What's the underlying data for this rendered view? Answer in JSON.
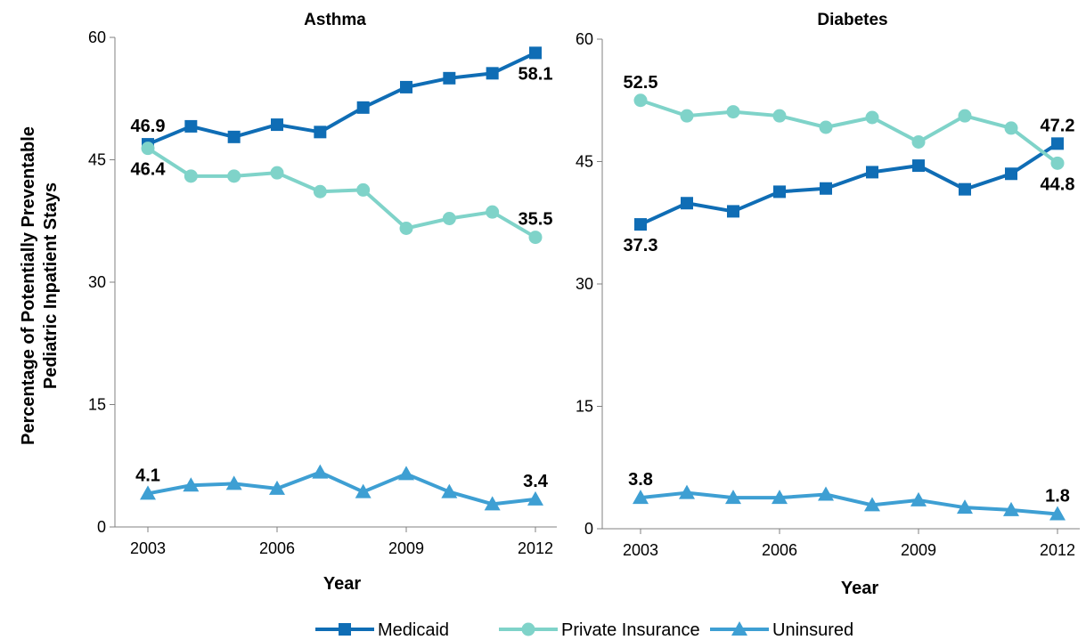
{
  "chart_data": [
    {
      "type": "line",
      "title": "Asthma",
      "xlabel": "Year",
      "ylabel": "Percentage of Potentially Preventable Pediatric Inpatient Stays",
      "x": [
        2003,
        2004,
        2005,
        2006,
        2007,
        2008,
        2009,
        2010,
        2011,
        2012
      ],
      "xticks": [
        "2003",
        "2006",
        "2009",
        "2012"
      ],
      "yticks": [
        "0",
        "15",
        "30",
        "45",
        "60"
      ],
      "ylim": [
        0,
        60
      ],
      "series": [
        {
          "name": "Medicaid",
          "color": "#0f6db5",
          "marker": "square",
          "values": [
            46.9,
            49.1,
            47.8,
            49.3,
            48.4,
            51.4,
            53.9,
            55.0,
            55.6,
            58.1
          ]
        },
        {
          "name": "Private Insurance",
          "color": "#7fd3c9",
          "marker": "circle",
          "values": [
            46.4,
            43.0,
            43.0,
            43.4,
            41.1,
            41.3,
            36.6,
            37.8,
            38.6,
            35.5
          ]
        },
        {
          "name": "Uninsured",
          "color": "#3e9fd3",
          "marker": "triangle",
          "values": [
            4.1,
            5.1,
            5.3,
            4.7,
            6.7,
            4.3,
            6.5,
            4.3,
            2.8,
            3.4
          ]
        }
      ],
      "data_labels": [
        {
          "series": "Medicaid",
          "index": 0,
          "text": "46.9",
          "position": "above"
        },
        {
          "series": "Private Insurance",
          "index": 0,
          "text": "46.4",
          "position": "below"
        },
        {
          "series": "Medicaid",
          "index": 9,
          "text": "58.1",
          "position": "below"
        },
        {
          "series": "Private Insurance",
          "index": 9,
          "text": "35.5",
          "position": "above"
        },
        {
          "series": "Uninsured",
          "index": 0,
          "text": "4.1",
          "position": "above"
        },
        {
          "series": "Uninsured",
          "index": 9,
          "text": "3.4",
          "position": "above"
        }
      ]
    },
    {
      "type": "line",
      "title": "Diabetes",
      "xlabel": "Year",
      "x": [
        2003,
        2004,
        2005,
        2006,
        2007,
        2008,
        2009,
        2010,
        2011,
        2012
      ],
      "xticks": [
        "2003",
        "2006",
        "2009",
        "2012"
      ],
      "yticks": [
        "0",
        "15",
        "30",
        "45",
        "60"
      ],
      "ylim": [
        0,
        60
      ],
      "series": [
        {
          "name": "Medicaid",
          "color": "#0f6db5",
          "marker": "square",
          "values": [
            37.3,
            39.9,
            38.9,
            41.3,
            41.7,
            43.7,
            44.5,
            41.6,
            43.5,
            47.2
          ]
        },
        {
          "name": "Private Insurance",
          "color": "#7fd3c9",
          "marker": "circle",
          "values": [
            52.5,
            50.6,
            51.1,
            50.6,
            49.2,
            50.4,
            47.4,
            50.6,
            49.1,
            44.8
          ]
        },
        {
          "name": "Uninsured",
          "color": "#3e9fd3",
          "marker": "triangle",
          "values": [
            3.8,
            4.4,
            3.8,
            3.8,
            4.2,
            2.9,
            3.5,
            2.6,
            2.3,
            1.8
          ]
        }
      ],
      "data_labels": [
        {
          "series": "Private Insurance",
          "index": 0,
          "text": "52.5",
          "position": "above"
        },
        {
          "series": "Medicaid",
          "index": 0,
          "text": "37.3",
          "position": "below"
        },
        {
          "series": "Medicaid",
          "index": 9,
          "text": "47.2",
          "position": "above"
        },
        {
          "series": "Private Insurance",
          "index": 9,
          "text": "44.8",
          "position": "below"
        },
        {
          "series": "Uninsured",
          "index": 0,
          "text": "3.8",
          "position": "above"
        },
        {
          "series": "Uninsured",
          "index": 9,
          "text": "1.8",
          "position": "above"
        }
      ]
    }
  ],
  "legend": {
    "placement": "bottom-center",
    "items": [
      {
        "label": "Medicaid",
        "color": "#0f6db5",
        "marker": "square"
      },
      {
        "label": "Private Insurance",
        "color": "#7fd3c9",
        "marker": "circle"
      },
      {
        "label": "Uninsured",
        "color": "#3e9fd3",
        "marker": "triangle"
      }
    ]
  }
}
